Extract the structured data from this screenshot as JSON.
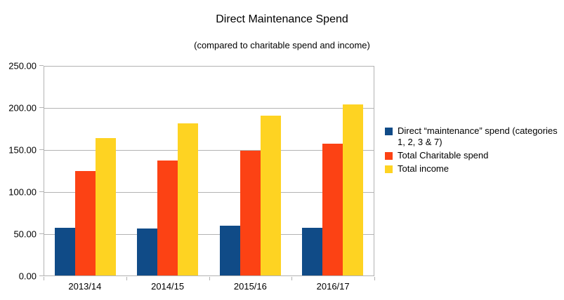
{
  "chart": {
    "title": "Direct Maintenance Spend",
    "subtitle": "(compared to charitable spend and income)"
  },
  "chart_data": {
    "type": "bar",
    "title": "Direct Maintenance Spend",
    "subtitle": "(compared to charitable spend and income)",
    "categories": [
      "2013/14",
      "2014/15",
      "2015/16",
      "2016/17"
    ],
    "series": [
      {
        "name": "Direct “maintenance” spend (categories 1, 2, 3 & 7)",
        "color": "#104b87",
        "values": [
          57,
          56,
          59,
          57
        ]
      },
      {
        "name": "Total Charitable spend",
        "color": "#fc4214",
        "values": [
          124,
          137,
          148,
          157
        ]
      },
      {
        "name": "Total income",
        "color": "#fed322",
        "values": [
          163,
          181,
          190,
          203
        ]
      }
    ],
    "xlabel": "",
    "ylabel": "",
    "ylim": [
      0,
      250
    ],
    "ytick_step": 50,
    "ytick_labels": [
      "0.00",
      "50.00",
      "100.00",
      "150.00",
      "200.00",
      "250.00"
    ],
    "grid": true,
    "legend_position": "right",
    "axis_color": "#b3b3b3",
    "text_color": "#000000",
    "background_color": "#ffffff"
  }
}
